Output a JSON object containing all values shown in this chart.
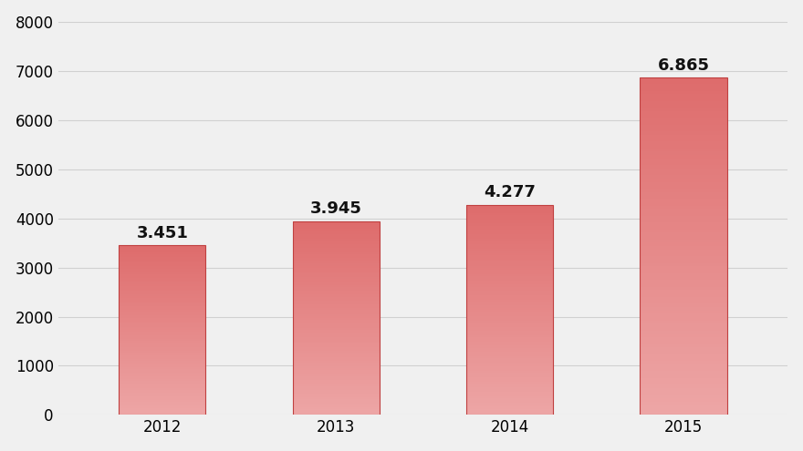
{
  "categories": [
    "2012",
    "2013",
    "2014",
    "2015"
  ],
  "values": [
    3451,
    3945,
    4277,
    6865
  ],
  "labels": [
    "3.451",
    "3.945",
    "4.277",
    "6.865"
  ],
  "bar_color_top": "#e87070",
  "bar_color_bottom": "#e8a0a0",
  "bar_edge_color": "#c04040",
  "background_color": "#f0f0f0",
  "ylim": [
    0,
    8000
  ],
  "yticks": [
    0,
    1000,
    2000,
    3000,
    4000,
    5000,
    6000,
    7000,
    8000
  ],
  "grid_color": "#d0d0d0",
  "label_fontsize": 13,
  "tick_fontsize": 12,
  "label_color": "#111111"
}
